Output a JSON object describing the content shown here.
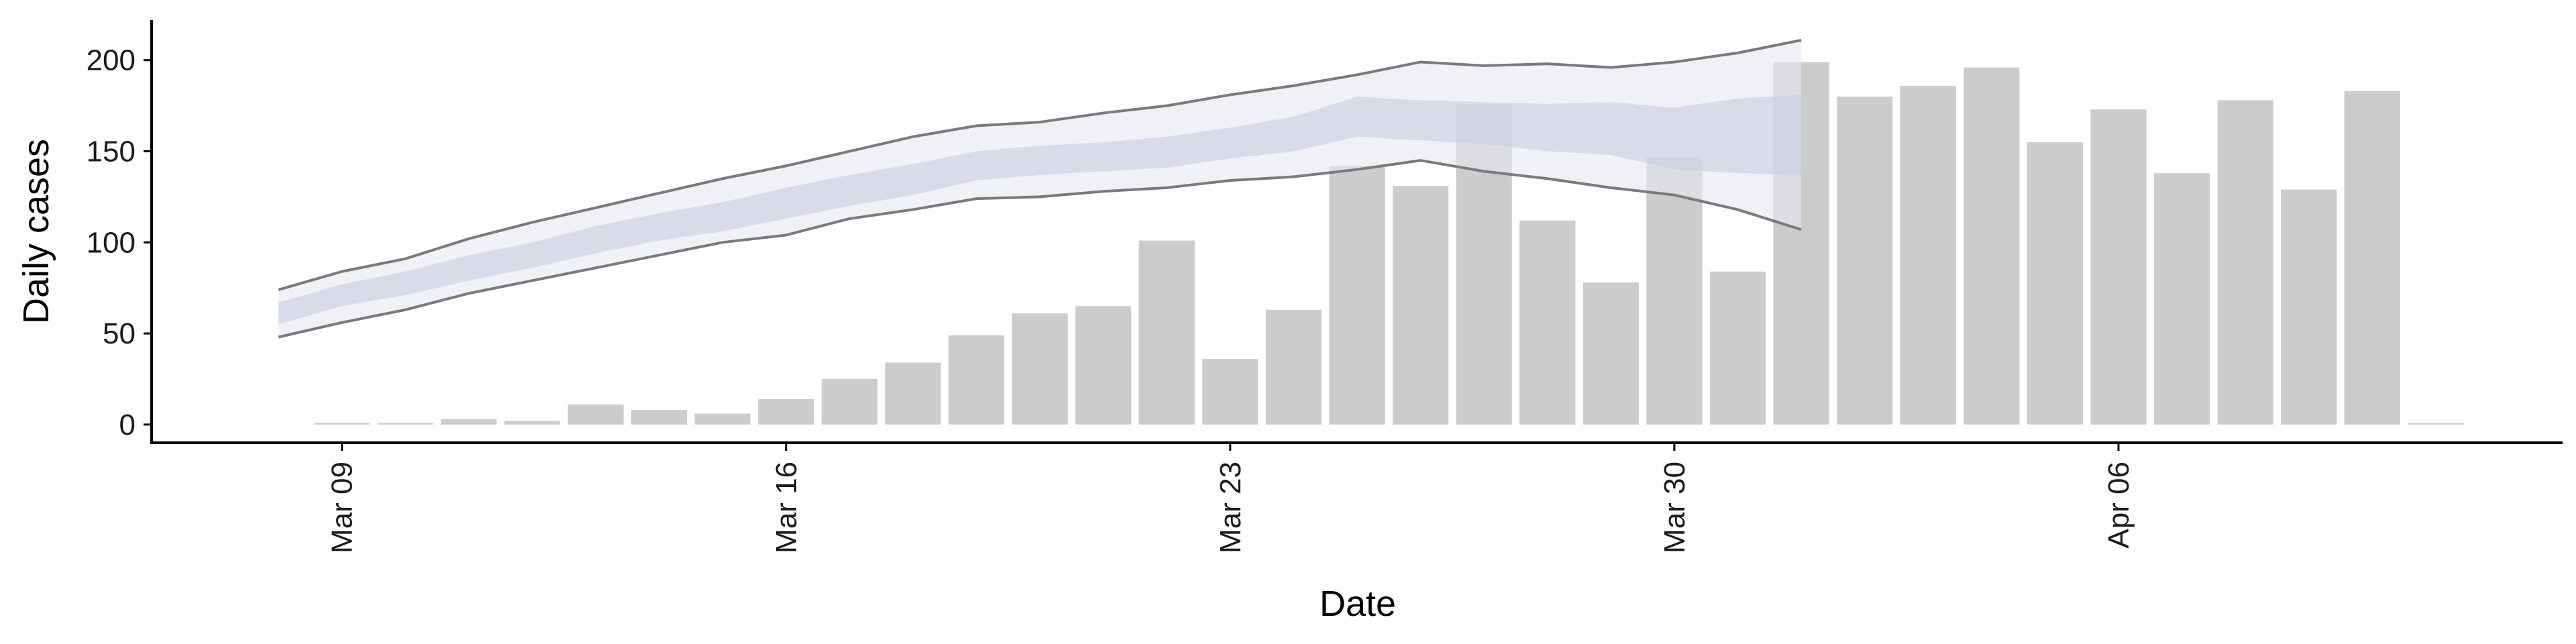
{
  "chart_data": {
    "type": "bar",
    "xlabel": "Date",
    "ylabel": "Daily cases",
    "ylim": [
      -10,
      222
    ],
    "y_ticks": [
      0,
      50,
      100,
      150,
      200
    ],
    "x_tick_labels": [
      "Mar 09",
      "Mar 16",
      "Mar 23",
      "Mar 30",
      "Apr 06"
    ],
    "x_tick_dates": [
      "2020-03-09",
      "2020-03-16",
      "2020-03-23",
      "2020-03-30",
      "2020-04-06"
    ],
    "x_range": [
      "2020-03-06",
      "2020-04-13"
    ],
    "grid": false,
    "bars": {
      "dates": [
        "2020-03-09",
        "2020-03-10",
        "2020-03-11",
        "2020-03-12",
        "2020-03-13",
        "2020-03-14",
        "2020-03-15",
        "2020-03-16",
        "2020-03-17",
        "2020-03-18",
        "2020-03-19",
        "2020-03-20",
        "2020-03-21",
        "2020-03-22",
        "2020-03-23",
        "2020-03-24",
        "2020-03-25",
        "2020-03-26",
        "2020-03-27",
        "2020-03-28",
        "2020-03-29",
        "2020-03-30",
        "2020-03-31",
        "2020-04-01",
        "2020-04-02",
        "2020-04-03",
        "2020-04-04",
        "2020-04-05",
        "2020-04-06",
        "2020-04-07",
        "2020-04-08",
        "2020-04-09",
        "2020-04-10",
        "2020-04-11"
      ],
      "values": [
        1,
        1,
        3,
        2,
        11,
        8,
        6,
        14,
        25,
        34,
        49,
        61,
        65,
        101,
        36,
        63,
        142,
        131,
        176,
        112,
        78,
        147,
        84,
        199,
        180,
        186,
        196,
        155,
        173,
        138,
        178,
        129,
        183,
        0
      ],
      "color": "#cccccc"
    },
    "forecast": {
      "dates": [
        "2020-03-08",
        "2020-03-09",
        "2020-03-10",
        "2020-03-11",
        "2020-03-12",
        "2020-03-13",
        "2020-03-14",
        "2020-03-15",
        "2020-03-16",
        "2020-03-17",
        "2020-03-18",
        "2020-03-19",
        "2020-03-20",
        "2020-03-21",
        "2020-03-22",
        "2020-03-23",
        "2020-03-24",
        "2020-03-25",
        "2020-03-26",
        "2020-03-27",
        "2020-03-28",
        "2020-03-29",
        "2020-03-30",
        "2020-03-31",
        "2020-04-01"
      ],
      "upper_90": [
        74,
        84,
        91,
        102,
        111,
        119,
        127,
        135,
        142,
        150,
        158,
        164,
        166,
        171,
        175,
        181,
        186,
        192,
        199,
        197,
        198,
        196,
        199,
        204,
        211
      ],
      "lower_90": [
        48,
        56,
        63,
        72,
        79,
        86,
        93,
        100,
        104,
        113,
        118,
        124,
        125,
        128,
        130,
        134,
        136,
        140,
        145,
        139,
        135,
        130,
        126,
        118,
        107
      ],
      "upper_50": [
        67,
        77,
        84,
        93,
        100,
        109,
        116,
        122,
        130,
        137,
        143,
        150,
        153,
        155,
        158,
        163,
        169,
        180,
        178,
        177,
        176,
        177,
        174,
        179,
        181
      ],
      "lower_50": [
        55,
        65,
        71,
        79,
        86,
        94,
        101,
        106,
        113,
        120,
        126,
        134,
        137,
        139,
        141,
        146,
        150,
        158,
        156,
        154,
        150,
        148,
        140,
        138,
        137
      ],
      "band_90_color": "#e6e8f0",
      "band_50_color": "#c9cfe0",
      "line_color": "#7a7a7a"
    }
  }
}
